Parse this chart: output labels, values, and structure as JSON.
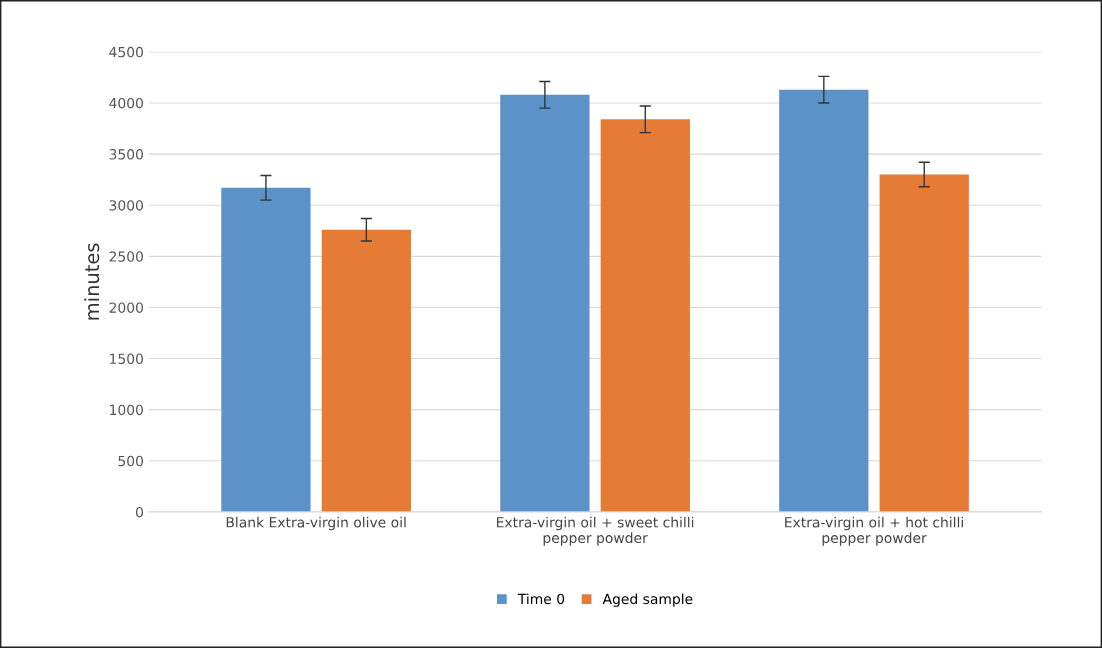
{
  "chart_data": {
    "type": "bar",
    "ylabel": "minutes",
    "categories": [
      "Blank Extra-virgin olive oil",
      "Extra-virgin oil + sweet chilli\npepper powder",
      "Extra-virgin oil + hot chilli\npepper powder"
    ],
    "series": [
      {
        "name": "Time 0",
        "color": "#5b93c9",
        "values": [
          3170,
          4080,
          4130
        ],
        "errors": [
          120,
          130,
          130
        ]
      },
      {
        "name": "Aged sample",
        "color": "#e57b34",
        "values": [
          2760,
          3840,
          3300
        ],
        "errors": [
          110,
          130,
          120
        ]
      }
    ],
    "ylim": [
      0,
      4500
    ],
    "yticks": [
      0,
      500,
      1000,
      1500,
      2000,
      2500,
      3000,
      3500,
      4000,
      4500
    ],
    "grid": "y",
    "legend": "bottom"
  }
}
